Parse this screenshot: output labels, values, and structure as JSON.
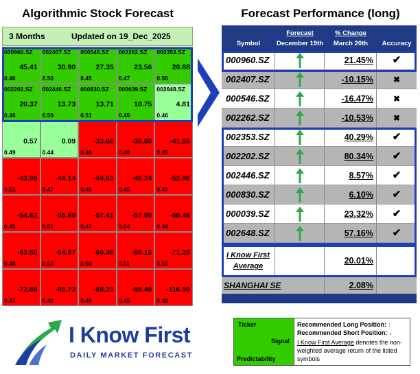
{
  "left_title": "Algorithmic Stock Forecast",
  "right_title": "Forecast Performance (long)",
  "heatmap": {
    "horizon": "3 Months",
    "updated": "Updated on 19_Dec_2025",
    "colors": {
      "strong_green": "#33cc00",
      "light_green": "#99ff99",
      "red": "#ff0000"
    },
    "rows": [
      [
        {
          "symbol": "000960.SZ",
          "signal": "45.41",
          "predictability": "0.46",
          "color": "green"
        },
        {
          "symbol": "002407.SZ",
          "signal": "30.90",
          "predictability": "0.50",
          "color": "green"
        },
        {
          "symbol": "000546.SZ",
          "signal": "27.35",
          "predictability": "0.45",
          "color": "green"
        },
        {
          "symbol": "002262.SZ",
          "signal": "23.56",
          "predictability": "0.47",
          "color": "green"
        },
        {
          "symbol": "002353.SZ",
          "signal": "20.88",
          "predictability": "0.50",
          "color": "green"
        }
      ],
      [
        {
          "symbol": "002202.SZ",
          "signal": "20.37",
          "predictability": "0.46",
          "color": "green"
        },
        {
          "symbol": "002446.SZ",
          "signal": "13.73",
          "predictability": "0.50",
          "color": "green"
        },
        {
          "symbol": "000830.SZ",
          "signal": "13.71",
          "predictability": "0.51",
          "color": "green"
        },
        {
          "symbol": "000039.SZ",
          "signal": "10.75",
          "predictability": "0.45",
          "color": "green"
        },
        {
          "symbol": "002648.SZ",
          "signal": "4.81",
          "predictability": "0.46",
          "color": "light_green"
        }
      ],
      [
        {
          "symbol": "",
          "signal": "0.57",
          "predictability": "0.49",
          "color": "light_green"
        },
        {
          "symbol": "",
          "signal": "0.09",
          "predictability": "0.44",
          "color": "light_green"
        },
        {
          "symbol": "",
          "signal": "-33.66",
          "predictability": "0.46",
          "color": "red"
        },
        {
          "symbol": "",
          "signal": "-38.80",
          "predictability": "0.48",
          "color": "red"
        },
        {
          "symbol": "",
          "signal": "-41.55",
          "predictability": "0.45",
          "color": "red"
        }
      ],
      [
        {
          "symbol": "",
          "signal": "-43.99",
          "predictability": "0.51",
          "color": "red"
        },
        {
          "symbol": "",
          "signal": "-44.14",
          "predictability": "0.47",
          "color": "red"
        },
        {
          "symbol": "",
          "signal": "-44.63",
          "predictability": "0.46",
          "color": "red"
        },
        {
          "symbol": "",
          "signal": "-46.24",
          "predictability": "0.45",
          "color": "red"
        },
        {
          "symbol": "",
          "signal": "-52.86",
          "predictability": "0.47",
          "color": "red"
        }
      ],
      [
        {
          "symbol": "",
          "signal": "-54.62",
          "predictability": "0.45",
          "color": "red"
        },
        {
          "symbol": "",
          "signal": "-55.60",
          "predictability": "0.51",
          "color": "red"
        },
        {
          "symbol": "",
          "signal": "-57.41",
          "predictability": "0.47",
          "color": "red"
        },
        {
          "symbol": "",
          "signal": "-57.99",
          "predictability": "0.54",
          "color": "red"
        },
        {
          "symbol": "",
          "signal": "-60.46",
          "predictability": "0.44",
          "color": "red"
        }
      ],
      [
        {
          "symbol": "",
          "signal": "-63.50",
          "predictability": "0.48",
          "color": "red"
        },
        {
          "symbol": "",
          "signal": "-64.87",
          "predictability": "0.50",
          "color": "red"
        },
        {
          "symbol": "",
          "signal": "-66.39",
          "predictability": "0.50",
          "color": "red"
        },
        {
          "symbol": "",
          "signal": "-68.16",
          "predictability": "0.51",
          "color": "red"
        },
        {
          "symbol": "",
          "signal": "-71.28",
          "predictability": "0.56",
          "color": "red"
        }
      ],
      [
        {
          "symbol": "",
          "signal": "-72.88",
          "predictability": "0.47",
          "color": "red"
        },
        {
          "symbol": "",
          "signal": "-80.73",
          "predictability": "0.49",
          "color": "red"
        },
        {
          "symbol": "",
          "signal": "-88.23",
          "predictability": "0.49",
          "color": "red"
        },
        {
          "symbol": "",
          "signal": "-88.49",
          "predictability": "0.45",
          "color": "red"
        },
        {
          "symbol": "",
          "signal": "-116.50",
          "predictability": "0.48",
          "color": "red"
        }
      ]
    ]
  },
  "performance": {
    "headers": {
      "symbol": "Symbol",
      "forecast": "Forecast",
      "forecast_date": "December 19th",
      "change": "% Change",
      "change_date": "March 20th",
      "accuracy": "Accuracy"
    },
    "colors": {
      "header": "#203a86",
      "arrow": "#2ea84a",
      "box": "#1f3fb8"
    },
    "rows": [
      {
        "symbol": "000960.SZ",
        "direction": "up",
        "change": "21.45%",
        "accuracy": "✔"
      },
      {
        "symbol": "002407.SZ",
        "direction": "up",
        "change": "-10.15%",
        "accuracy": "✖"
      },
      {
        "symbol": "000546.SZ",
        "direction": "up",
        "change": "-16.47%",
        "accuracy": "✖"
      },
      {
        "symbol": "002262.SZ",
        "direction": "up",
        "change": "-10.53%",
        "accuracy": "✖"
      },
      {
        "symbol": "002353.SZ",
        "direction": "up",
        "change": "40.29%",
        "accuracy": "✔"
      },
      {
        "symbol": "002202.SZ",
        "direction": "up",
        "change": "80.34%",
        "accuracy": "✔"
      },
      {
        "symbol": "002446.SZ",
        "direction": "up",
        "change": "8.57%",
        "accuracy": "✔"
      },
      {
        "symbol": "000830.SZ",
        "direction": "up",
        "change": "6.10%",
        "accuracy": "✔"
      },
      {
        "symbol": "000039.SZ",
        "direction": "up",
        "change": "23.32%",
        "accuracy": "✔"
      },
      {
        "symbol": "002648.SZ",
        "direction": "up",
        "change": "57.16%",
        "accuracy": "✔"
      }
    ],
    "average_label_1": "I Know First",
    "average_label_2": "Average",
    "average_value": "20.01%",
    "benchmark_label": "SHANGHAI SE",
    "benchmark_value": "2.08%"
  },
  "chart_data": {
    "type": "table",
    "title": "Forecast Performance (long)",
    "columns": [
      "Symbol",
      "Forecast December 19th",
      "% Change March 20th",
      "Accuracy"
    ],
    "rows": [
      [
        "000960.SZ",
        "up",
        21.45,
        "correct"
      ],
      [
        "002407.SZ",
        "up",
        -10.15,
        "incorrect"
      ],
      [
        "000546.SZ",
        "up",
        -16.47,
        "incorrect"
      ],
      [
        "002262.SZ",
        "up",
        -10.53,
        "incorrect"
      ],
      [
        "002353.SZ",
        "up",
        40.29,
        "correct"
      ],
      [
        "002202.SZ",
        "up",
        80.34,
        "correct"
      ],
      [
        "002446.SZ",
        "up",
        8.57,
        "correct"
      ],
      [
        "000830.SZ",
        "up",
        6.1,
        "correct"
      ],
      [
        "000039.SZ",
        "up",
        23.32,
        "correct"
      ],
      [
        "002648.SZ",
        "up",
        57.16,
        "correct"
      ]
    ],
    "average": 20.01,
    "benchmark": {
      "name": "SHANGHAI SE",
      "value": 2.08
    }
  },
  "legend": {
    "ticker": "Ticker",
    "signal": "Signal",
    "predictability": "Predictability",
    "long_label": "Recommended Long Position:",
    "short_label": "Recommended Short Position:",
    "note_link": "I Know First Average",
    "note_rest": " denotes the non-weighted average return of the listed symbols"
  },
  "logo": {
    "brand": "I Know First",
    "tagline": "DAILY MARKET FORECAST"
  }
}
